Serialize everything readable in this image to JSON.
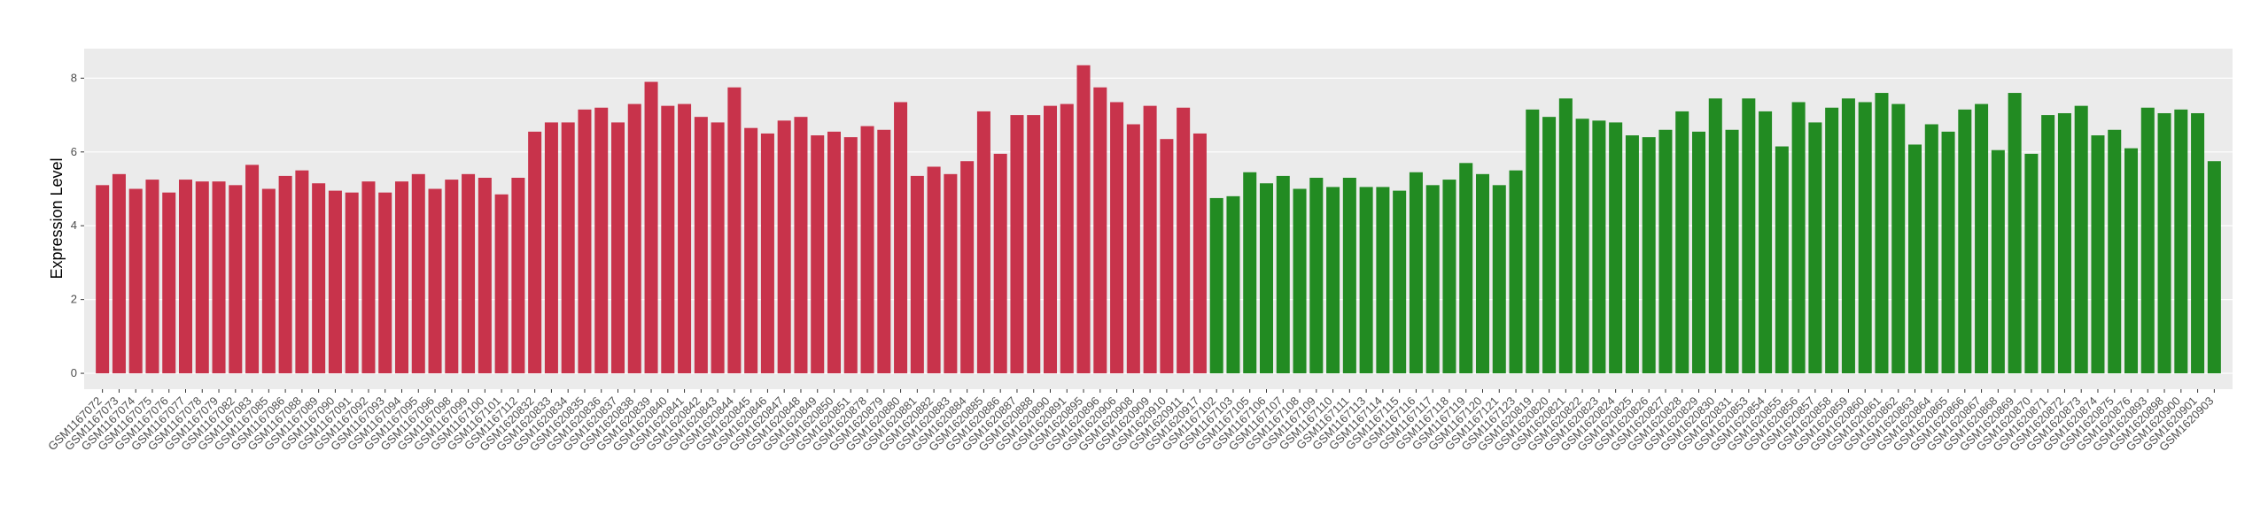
{
  "chart_data": {
    "type": "bar",
    "y_label": "Expression Level",
    "ylim": [
      -0.43,
      8.8
    ],
    "yticks": [
      0,
      2,
      4,
      6,
      8
    ],
    "grid": true,
    "series": [
      {
        "color": "#c8334b",
        "categories": [
          "GSM1167072",
          "GSM1167073",
          "GSM1167074",
          "GSM1167075",
          "GSM1167076",
          "GSM1167077",
          "GSM1167078",
          "GSM1167079",
          "GSM1167082",
          "GSM1167083",
          "GSM1167085",
          "GSM1167086",
          "GSM1167088",
          "GSM1167089",
          "GSM1167090",
          "GSM1167091",
          "GSM1167092",
          "GSM1167093",
          "GSM1167094",
          "GSM1167095",
          "GSM1167096",
          "GSM1167098",
          "GSM1167099",
          "GSM1167100",
          "GSM1167101",
          "GSM1167112",
          "GSM1620832",
          "GSM1620833",
          "GSM1620834",
          "GSM1620835",
          "GSM1620836",
          "GSM1620837",
          "GSM1620838",
          "GSM1620839",
          "GSM1620840",
          "GSM1620841",
          "GSM1620842",
          "GSM1620843",
          "GSM1620844",
          "GSM1620845",
          "GSM1620846",
          "GSM1620847",
          "GSM1620848",
          "GSM1620849",
          "GSM1620850",
          "GSM1620851",
          "GSM1620878",
          "GSM1620879",
          "GSM1620880",
          "GSM1620881",
          "GSM1620882",
          "GSM1620883",
          "GSM1620884",
          "GSM1620885",
          "GSM1620886",
          "GSM1620887",
          "GSM1620888",
          "GSM1620890",
          "GSM1620891",
          "GSM1620895",
          "GSM1620896",
          "GSM1620906",
          "GSM1620908",
          "GSM1620909",
          "GSM1620910",
          "GSM1620911",
          "GSM1620917"
        ],
        "values": [
          5.1,
          5.4,
          5.0,
          5.25,
          4.9,
          5.25,
          5.2,
          5.2,
          5.1,
          5.65,
          5.0,
          5.35,
          5.5,
          5.15,
          4.95,
          4.9,
          5.2,
          4.9,
          5.2,
          5.4,
          5.0,
          5.25,
          5.4,
          5.3,
          4.85,
          5.3,
          6.55,
          6.8,
          6.8,
          7.15,
          7.2,
          6.8,
          7.3,
          7.9,
          7.25,
          7.3,
          6.95,
          6.8,
          7.75,
          6.65,
          6.5,
          6.85,
          6.95,
          6.45,
          6.55,
          6.4,
          6.7,
          6.6,
          7.35,
          5.35,
          5.6,
          5.4,
          5.75,
          7.1,
          5.95,
          7.0,
          7.0,
          7.25,
          7.3,
          8.35,
          7.75,
          7.35,
          6.75,
          7.25,
          6.35,
          7.2,
          6.5
        ]
      },
      {
        "color": "#228b22",
        "categories": [
          "GSM1167102",
          "GSM1167103",
          "GSM1167105",
          "GSM1167106",
          "GSM1167107",
          "GSM1167108",
          "GSM1167109",
          "GSM1167110",
          "GSM1167111",
          "GSM1167113",
          "GSM1167114",
          "GSM1167115",
          "GSM1167116",
          "GSM1167117",
          "GSM1167118",
          "GSM1167119",
          "GSM1167120",
          "GSM1167121",
          "GSM1167123",
          "GSM1620819",
          "GSM1620820",
          "GSM1620821",
          "GSM1620822",
          "GSM1620823",
          "GSM1620824",
          "GSM1620825",
          "GSM1620826",
          "GSM1620827",
          "GSM1620828",
          "GSM1620829",
          "GSM1620830",
          "GSM1620831",
          "GSM1620853",
          "GSM1620854",
          "GSM1620855",
          "GSM1620856",
          "GSM1620857",
          "GSM1620858",
          "GSM1620859",
          "GSM1620860",
          "GSM1620861",
          "GSM1620862",
          "GSM1620863",
          "GSM1620864",
          "GSM1620865",
          "GSM1620866",
          "GSM1620867",
          "GSM1620868",
          "GSM1620869",
          "GSM1620870",
          "GSM1620871",
          "GSM1620872",
          "GSM1620873",
          "GSM1620874",
          "GSM1620875",
          "GSM1620876",
          "GSM1620893",
          "GSM1620898",
          "GSM1620900",
          "GSM1620901",
          "GSM1620903"
        ],
        "values": [
          4.75,
          4.8,
          5.45,
          5.15,
          5.35,
          5.0,
          5.3,
          5.05,
          5.3,
          5.05,
          5.05,
          4.95,
          5.45,
          5.1,
          5.25,
          5.7,
          5.4,
          5.1,
          5.5,
          7.15,
          6.95,
          7.45,
          6.9,
          6.85,
          6.8,
          6.45,
          6.4,
          6.6,
          7.1,
          6.55,
          7.45,
          6.6,
          7.45,
          7.1,
          6.15,
          7.35,
          6.8,
          7.2,
          7.45,
          7.35,
          7.6,
          7.3,
          6.2,
          6.75,
          6.55,
          7.15,
          7.3,
          6.05,
          7.6,
          5.95,
          7.0,
          7.05,
          7.25,
          6.45,
          6.6,
          6.1,
          7.2,
          7.05,
          7.15,
          7.05,
          5.75
        ]
      }
    ]
  }
}
